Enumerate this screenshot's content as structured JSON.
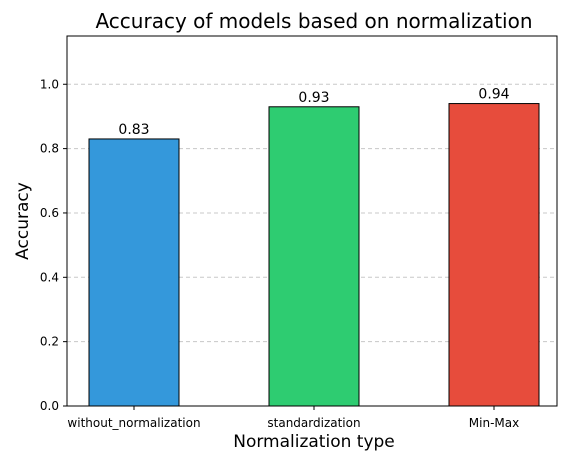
{
  "chart_data": {
    "type": "bar",
    "title": "Accuracy of models based on normalization",
    "xlabel": "Normalization type",
    "ylabel": "Accuracy",
    "categories": [
      "without_normalization",
      "standardization",
      "Min-Max"
    ],
    "values": [
      0.83,
      0.93,
      0.94
    ],
    "value_labels": [
      "0.83",
      "0.93",
      "0.94"
    ],
    "colors": [
      "#3498db",
      "#2ecc71",
      "#e74c3c"
    ],
    "ylim": [
      0,
      1.15
    ],
    "yticks": [
      0.0,
      0.2,
      0.4,
      0.6,
      0.8,
      1.0
    ],
    "ytick_labels": [
      "0.0",
      "0.2",
      "0.4",
      "0.6",
      "0.8",
      "1.0"
    ],
    "grid": "y-dashed"
  }
}
